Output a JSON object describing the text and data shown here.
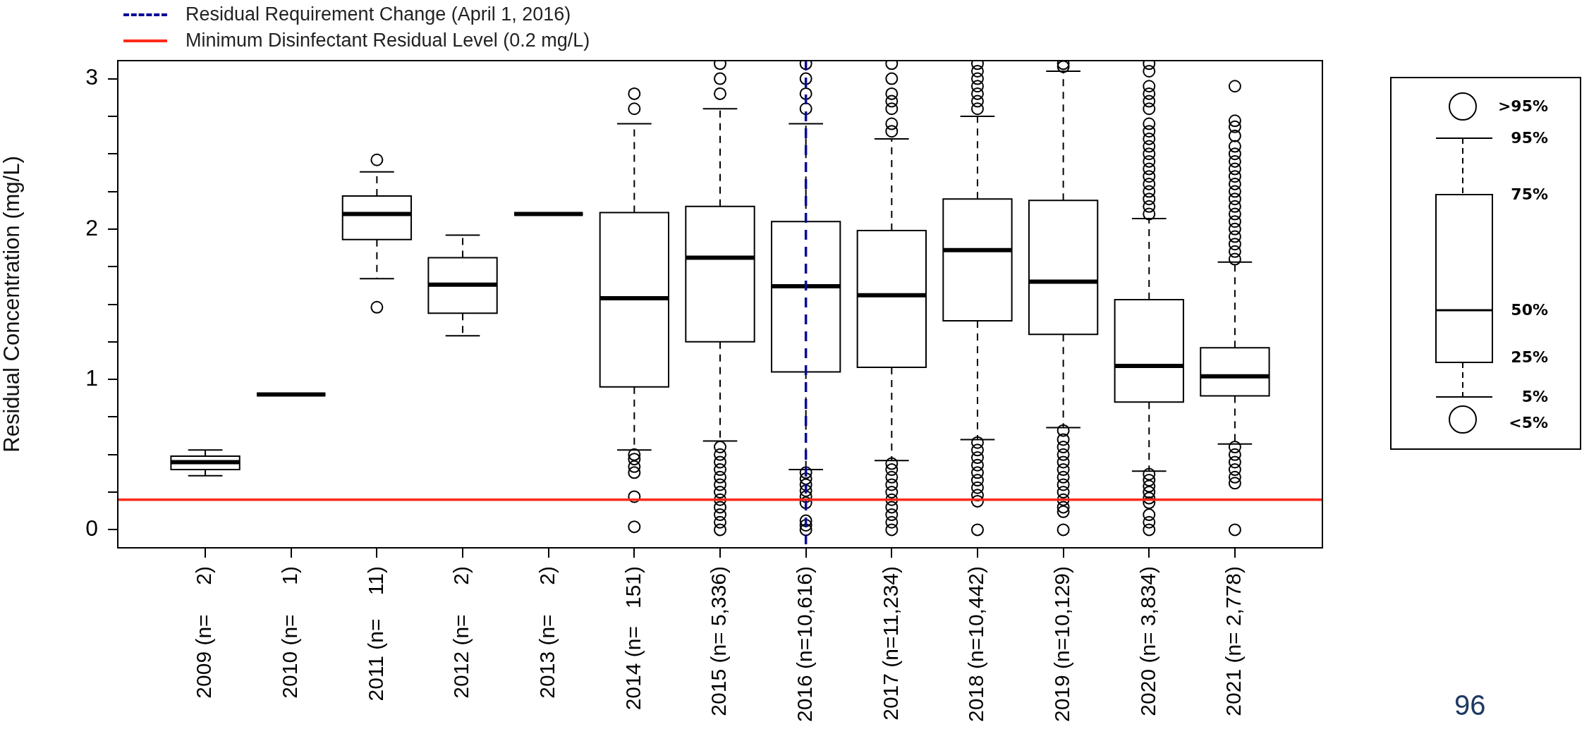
{
  "chart_data": {
    "type": "box",
    "ylabel": "Residual Concentration (mg/L)",
    "legend": "top left",
    "grid": false,
    "marker": "circle",
    "categories": [
      "2009 (n=     2)",
      "2010 (n=     1)",
      "2011 (n=    11)",
      "2012 (n=     2)",
      "2013 (n=     2)",
      "2014 (n=   151)",
      "2015 (n= 5,336)",
      "2016 (n=10,616)",
      "2017 (n=11,234)",
      "2018 (n=10,442)",
      "2019 (n=10,129)",
      "2020 (n= 3,834)",
      "2021 (n= 2,778)"
    ],
    "ylim": [
      -0.12,
      3.12
    ],
    "yticks": [
      0,
      {
        "value": 0.25,
        "label": null
      },
      {
        "value": 0.5,
        "label": null
      },
      {
        "value": 0.75,
        "label": null
      },
      1,
      {
        "value": 1.25,
        "label": null
      },
      {
        "value": 1.5,
        "label": null
      },
      {
        "value": 1.75,
        "label": null
      },
      2,
      {
        "value": 2.25,
        "label": null
      },
      {
        "value": 2.5,
        "label": null
      },
      {
        "value": 2.75,
        "label": null
      },
      3
    ],
    "boxes": [
      {
        "low": 0.36,
        "q1": 0.4,
        "median": 0.45,
        "q3": 0.49,
        "high": 0.53
      },
      {
        "low": 0.9,
        "q1": 0.9,
        "median": 0.9,
        "q3": 0.9,
        "high": 0.9
      },
      {
        "low": 1.67,
        "q1": 1.93,
        "median": 2.1,
        "q3": 2.22,
        "high": 2.38,
        "outliers": [
          2.46,
          1.48
        ]
      },
      {
        "low": 1.29,
        "q1": 1.44,
        "median": 1.63,
        "q3": 1.81,
        "high": 1.96
      },
      {
        "low": 2.1,
        "q1": 2.1,
        "median": 2.1,
        "q3": 2.1,
        "high": 2.1
      },
      {
        "low": 0.53,
        "q1": 0.95,
        "median": 1.54,
        "q3": 2.11,
        "high": 2.7,
        "outliers": [
          2.9,
          2.8,
          0.5,
          0.47,
          0.42,
          0.38,
          0.22,
          0.02
        ]
      },
      {
        "low": 0.59,
        "q1": 1.25,
        "median": 1.81,
        "q3": 2.15,
        "high": 2.8,
        "outliers": [
          3.1,
          3.0,
          2.9,
          0.55,
          0.5,
          0.45,
          0.4,
          0.35,
          0.3,
          0.25,
          0.2,
          0.15,
          0.1,
          0.05,
          0.0
        ]
      },
      {
        "low": 0.4,
        "q1": 1.05,
        "median": 1.62,
        "q3": 2.05,
        "high": 2.7,
        "outliers": [
          3.1,
          3.0,
          2.9,
          2.8,
          0.38,
          0.34,
          0.3,
          0.26,
          0.22,
          0.18,
          0.06,
          0.03,
          0.0
        ]
      },
      {
        "low": 0.46,
        "q1": 1.08,
        "median": 1.56,
        "q3": 1.99,
        "high": 2.6,
        "outliers": [
          3.1,
          3.0,
          2.9,
          2.85,
          2.8,
          2.7,
          2.65,
          0.44,
          0.4,
          0.35,
          0.3,
          0.25,
          0.2,
          0.15,
          0.1,
          0.05,
          0.0
        ]
      },
      {
        "low": 0.6,
        "q1": 1.39,
        "median": 1.86,
        "q3": 2.2,
        "high": 2.75,
        "outliers": [
          3.1,
          3.05,
          3.0,
          2.95,
          2.9,
          2.85,
          2.8,
          0.58,
          0.53,
          0.48,
          0.43,
          0.38,
          0.33,
          0.28,
          0.23,
          0.19,
          0.0
        ]
      },
      {
        "low": 0.68,
        "q1": 1.3,
        "median": 1.65,
        "q3": 2.19,
        "high": 3.05,
        "outliers": [
          3.1,
          3.08,
          0.66,
          0.6,
          0.55,
          0.5,
          0.45,
          0.4,
          0.35,
          0.3,
          0.25,
          0.2,
          0.15,
          0.12,
          0.0
        ]
      },
      {
        "low": 0.39,
        "q1": 0.85,
        "median": 1.09,
        "q3": 1.53,
        "high": 2.07,
        "outliers": [
          3.1,
          3.05,
          2.95,
          2.9,
          2.85,
          2.8,
          2.7,
          2.65,
          2.6,
          2.55,
          2.5,
          2.45,
          2.4,
          2.35,
          2.3,
          2.25,
          2.2,
          2.15,
          2.1,
          0.37,
          0.33,
          0.29,
          0.25,
          0.21,
          0.18,
          0.1,
          0.05,
          0.0
        ]
      },
      {
        "low": 0.57,
        "q1": 0.89,
        "median": 1.02,
        "q3": 1.21,
        "high": 1.78,
        "outliers": [
          2.95,
          2.72,
          2.68,
          2.62,
          2.55,
          2.5,
          2.45,
          2.4,
          2.35,
          2.3,
          2.25,
          2.2,
          2.15,
          2.1,
          2.05,
          2.0,
          1.95,
          1.9,
          1.85,
          1.8,
          0.55,
          0.5,
          0.45,
          0.4,
          0.35,
          0.31,
          0.0
        ]
      }
    ],
    "ref_lines": [
      {
        "axis": "x",
        "value": "2016 (n=10,616)",
        "label": "Residual Requirement Change (April 1, 2016)",
        "color": "#0a0a96",
        "line_style": "dashed"
      },
      {
        "axis": "y",
        "value": 0.2,
        "label": "Minimum Disinfectant Residual Level (0.2 mg/L)",
        "color": "#ff2a1a",
        "line_style": "solid"
      }
    ],
    "annotations": [
      ">95%",
      "95%",
      "75%",
      "50%",
      "25%",
      "5%",
      "<5%",
      "96"
    ]
  }
}
